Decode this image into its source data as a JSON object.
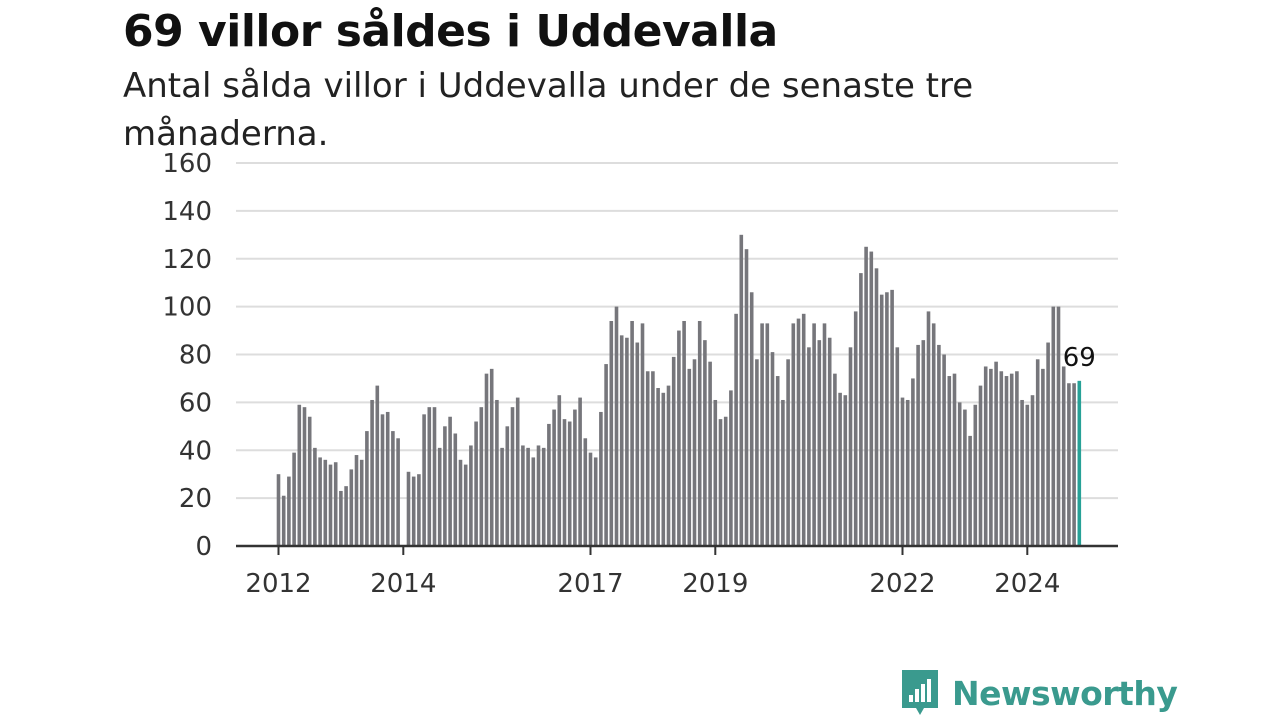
{
  "header": {
    "title": "69 villor såldes i Uddevalla",
    "subtitle": "Antal sålda villor i Uddevalla under de senaste tre månaderna."
  },
  "brand": {
    "name": "Newsworthy",
    "icon": "bar-chart-speech-bubble-icon",
    "color": "#3a9a8e"
  },
  "colors": {
    "bar": "#76767b",
    "highlight": "#27a197",
    "grid": "#dddddd",
    "axis": "#333333"
  },
  "chart_data": {
    "type": "bar",
    "title": "69 villor såldes i Uddevalla",
    "subtitle": "Antal sålda villor i Uddevalla under de senaste tre månaderna.",
    "xlabel": "",
    "ylabel": "",
    "ylim": [
      0,
      160
    ],
    "yticks": [
      0,
      20,
      40,
      60,
      80,
      100,
      120,
      140,
      160
    ],
    "grid": true,
    "x_start": "2012-01",
    "frequency": "monthly",
    "xtick_labels": [
      {
        "label": "2012",
        "month": "2012-01"
      },
      {
        "label": "2014",
        "month": "2014-01"
      },
      {
        "label": "2017",
        "month": "2017-01"
      },
      {
        "label": "2019",
        "month": "2019-01"
      },
      {
        "label": "2022",
        "month": "2022-01"
      },
      {
        "label": "2024",
        "month": "2024-01"
      }
    ],
    "values": [
      30,
      21,
      29,
      39,
      59,
      58,
      54,
      41,
      37,
      36,
      34,
      35,
      23,
      25,
      32,
      38,
      36,
      48,
      61,
      67,
      55,
      56,
      48,
      45,
      null,
      31,
      29,
      30,
      55,
      58,
      58,
      41,
      50,
      54,
      47,
      36,
      34,
      42,
      52,
      58,
      72,
      74,
      61,
      41,
      50,
      58,
      62,
      42,
      41,
      37,
      42,
      41,
      51,
      57,
      63,
      53,
      52,
      57,
      62,
      45,
      39,
      37,
      56,
      76,
      94,
      100,
      88,
      87,
      94,
      85,
      93,
      73,
      73,
      66,
      64,
      67,
      79,
      90,
      94,
      74,
      78,
      94,
      86,
      77,
      61,
      53,
      54,
      65,
      97,
      130,
      124,
      106,
      78,
      93,
      93,
      81,
      71,
      61,
      78,
      93,
      95,
      97,
      83,
      93,
      86,
      93,
      87,
      72,
      64,
      63,
      83,
      98,
      114,
      125,
      123,
      116,
      105,
      106,
      107,
      83,
      62,
      61,
      70,
      84,
      86,
      98,
      93,
      84,
      80,
      71,
      72,
      60,
      57,
      46,
      59,
      67,
      75,
      74,
      77,
      73,
      71,
      72,
      73,
      61,
      59,
      63,
      78,
      74,
      85,
      100,
      100,
      75,
      68,
      68,
      69
    ],
    "highlight": {
      "month": "2024-11",
      "value": 69,
      "label": "69"
    }
  }
}
